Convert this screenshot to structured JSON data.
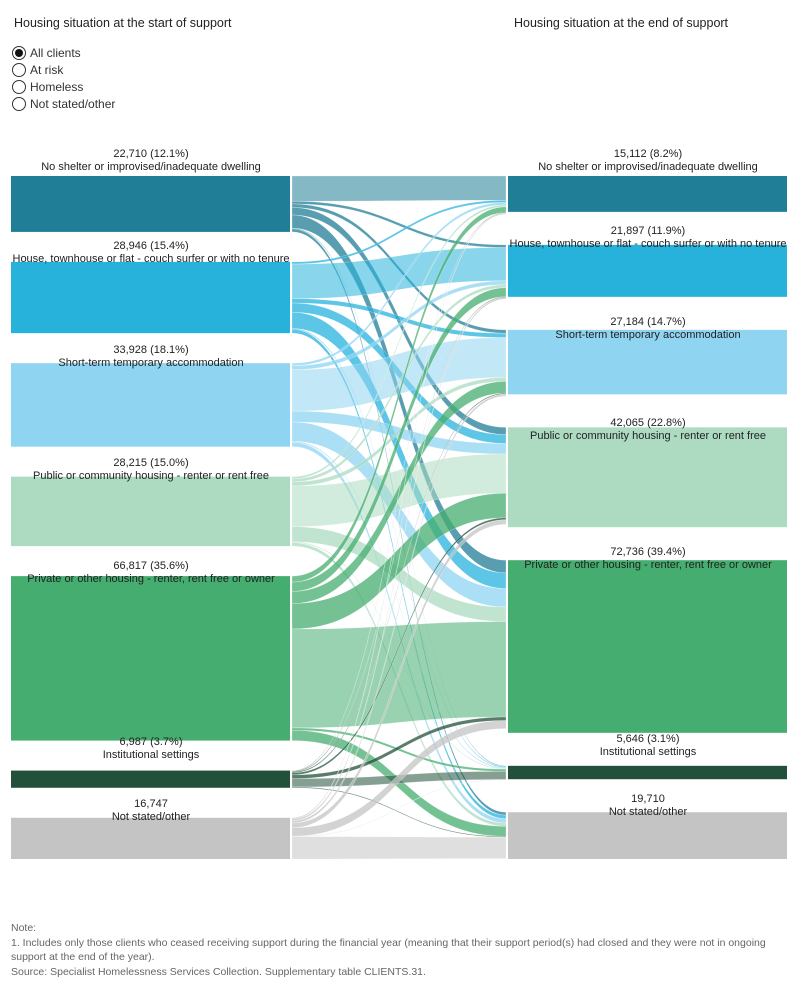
{
  "header": {
    "left_title": "Housing situation at the start of support",
    "right_title": "Housing situation at the end of support"
  },
  "filter": {
    "options": [
      "All clients",
      "At risk",
      "Homeless",
      "Not stated/other"
    ],
    "selected": "All clients"
  },
  "chart_data": {
    "type": "sankey",
    "title": "",
    "categories": [
      "No shelter or improvised/inadequate dwelling",
      "House, townhouse or flat - couch surfer or with no tenure",
      "Short-term temporary accommodation",
      "Public or community housing - renter or rent free",
      "Private or other housing - renter, rent free or owner",
      "Institutional settings",
      "Not stated/other"
    ],
    "colors": [
      "#207e96",
      "#27b2dc",
      "#8fd4f1",
      "#acdbc1",
      "#45ad6f",
      "#22503a",
      "#c4c4c4"
    ],
    "start": {
      "values": [
        22710,
        28946,
        33928,
        28215,
        66817,
        6987,
        16747
      ],
      "labels": [
        "22,710 (12.1%)",
        "28,946 (15.4%)",
        "33,928 (18.1%)",
        "28,215 (15.0%)",
        "66,817 (35.6%)",
        "6,987 (3.7%)",
        "16,747"
      ]
    },
    "end": {
      "values": [
        15112,
        21897,
        27184,
        42065,
        72736,
        5646,
        19710
      ],
      "labels": [
        "15,112 (8.2%)",
        "21,897 (11.9%)",
        "27,184 (14.7%)",
        "42,065 (22.8%)",
        "72,736 (39.4%)",
        "5,646 (3.1%)",
        "19,710"
      ]
    }
  },
  "notes": {
    "heading": "Note:",
    "line1": "1.  Includes only those clients who ceased receiving support during the financial year (meaning that their support period(s) had closed and they were not in ongoing support at the end of the year).",
    "source": "Source: Specialist Homelessness Services Collection. Supplementary table CLIENTS.31."
  }
}
